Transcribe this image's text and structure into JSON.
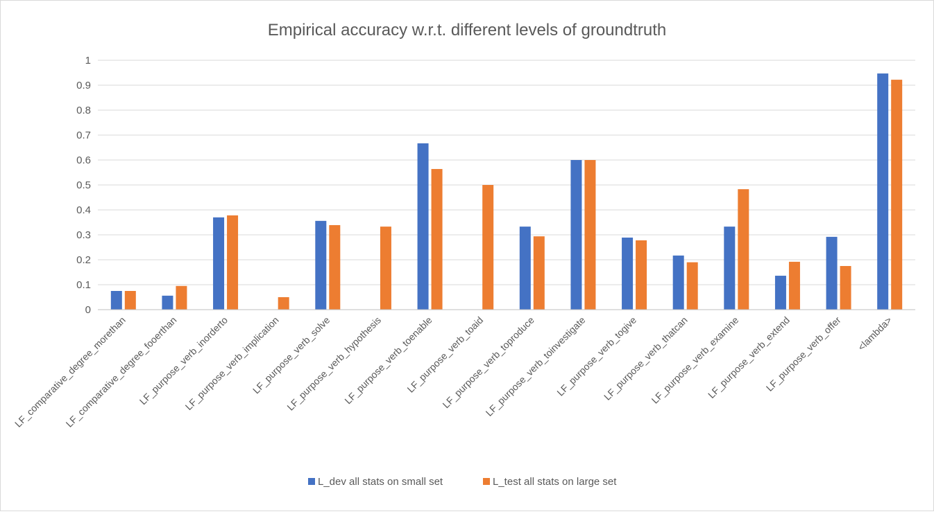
{
  "chart_data": {
    "type": "bar",
    "title": "Empirical accuracy w.r.t. different levels of groundtruth",
    "xlabel": "",
    "ylabel": "",
    "ylim": [
      0,
      1
    ],
    "yticks": [
      "0",
      "0.1",
      "0.2",
      "0.3",
      "0.4",
      "0.5",
      "0.6",
      "0.7",
      "0.8",
      "0.9",
      "1"
    ],
    "grid": true,
    "legend_position": "bottom",
    "categories": [
      "LF_comparative_degree_morethan",
      "LF_comparative_degree_fooerthan",
      "LF_purpose_verb_inorderto",
      "LF_purpose_verb_implication",
      "LF_purpose_verb_solve",
      "LF_purpose_verb_hypothesis",
      "LF_purpose_verb_toenable",
      "LF_purpose_verb_toaid",
      "LF_purpose_verb_toproduce",
      "LF_purpose_verb_toinvestigate",
      "LF_purpose_verb_togive",
      "LF_purpose_verb_thatcan",
      "LF_purpose_verb_examine",
      "LF_purpose_verb_extend",
      "LF_purpose_verb_offer",
      "<lambda>"
    ],
    "series": [
      {
        "name": "L_dev all stats on small set",
        "color": "#4472c4",
        "values": [
          0.075,
          0.056,
          0.37,
          0,
          0.356,
          0,
          0.667,
          0,
          0.333,
          0.6,
          0.289,
          0.217,
          0.333,
          0.136,
          0.292,
          0.947
        ]
      },
      {
        "name": "L_test all stats on large set",
        "color": "#ed7d31",
        "values": [
          0.075,
          0.095,
          0.378,
          0.05,
          0.339,
          0.333,
          0.564,
          0.5,
          0.294,
          0.6,
          0.278,
          0.19,
          0.483,
          0.192,
          0.175,
          0.922
        ]
      }
    ]
  }
}
